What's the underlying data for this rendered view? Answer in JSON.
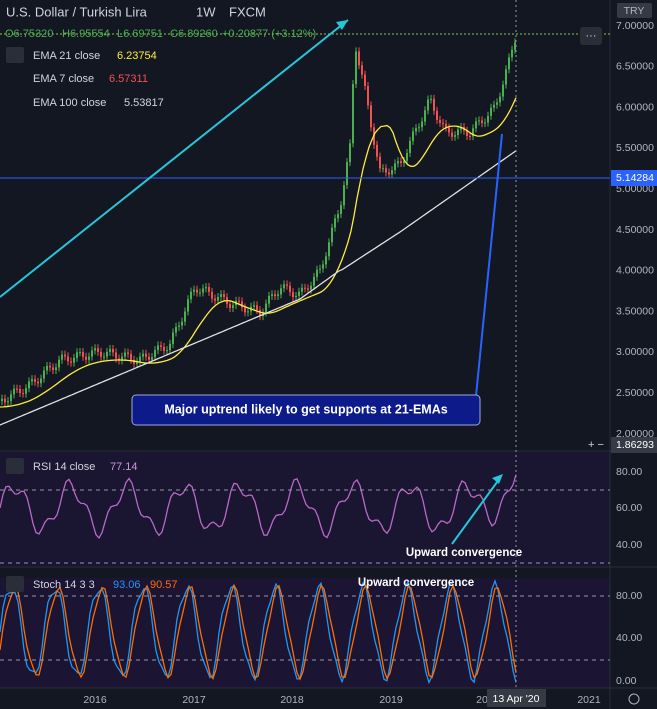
{
  "header": {
    "symbol": "U.S. Dollar / Turkish Lira",
    "interval": "1W",
    "source": "FXCM",
    "ohlc": [
      "O6.75320",
      "H6.95554",
      "L6.69751",
      "C6.89260",
      "+0.20877 (+3.12%)"
    ]
  },
  "currency": "TRY",
  "indicators": [
    {
      "name": "EMA 21 close",
      "value": "6.23754"
    },
    {
      "name": "EMA 7 close",
      "value": "6.57311"
    },
    {
      "name": "EMA 100 close",
      "value": "5.53817"
    }
  ],
  "price_axis": [
    "7.00000",
    "6.50000",
    "6.00000",
    "5.50000",
    "5.00000",
    "4.50000",
    "4.00000",
    "3.50000",
    "3.00000",
    "2.50000",
    "2.00000"
  ],
  "price_markers": [
    "5.14284",
    "1.86293"
  ],
  "rsi": {
    "name": "RSI 14 close",
    "value": "77.14",
    "axis": [
      "80.00",
      "60.00",
      "40.00"
    ]
  },
  "stoch": {
    "name": "Stoch 14 3 3",
    "k": "93.06",
    "d": "90.57",
    "axis": [
      "80.00",
      "40.00",
      "0.00"
    ]
  },
  "time_axis": [
    "2016",
    "2017",
    "2018",
    "2019",
    "20",
    "2021"
  ],
  "cursor_date": "13 Apr '20",
  "annotations": [
    "Major uptrend likely to get supports at 21-EMAs",
    "Upward convergence",
    "Upward convergence"
  ]
}
